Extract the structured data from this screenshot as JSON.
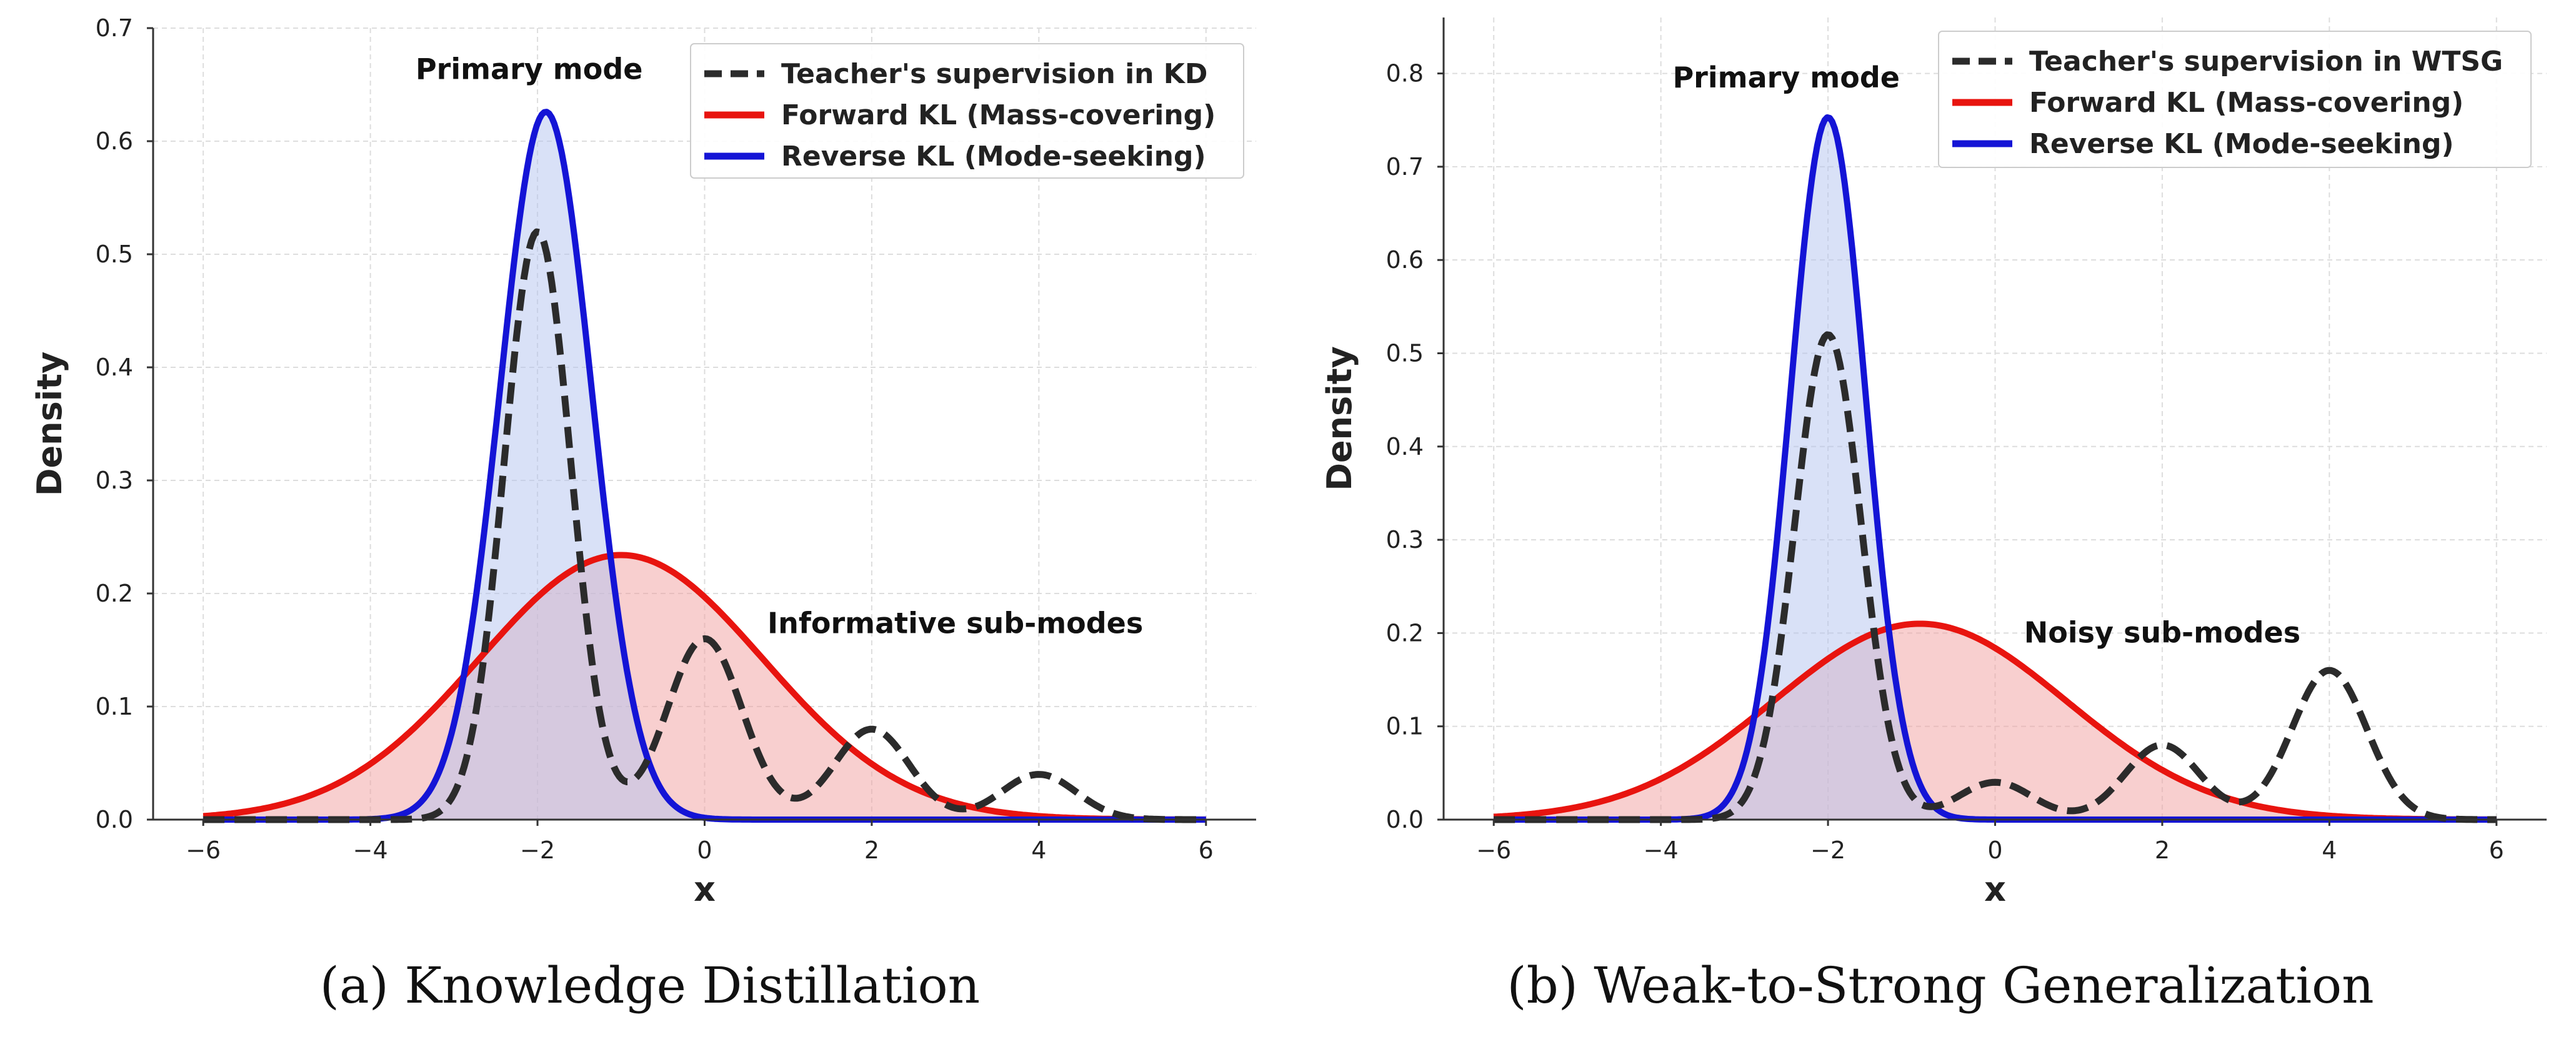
{
  "colors": {
    "teacher": "#2b2b2b",
    "forward": "#e8140f",
    "reverse": "#1414d6",
    "forward_fill": "#f2a0a0",
    "reverse_fill": "#b4c4f0",
    "grid": "#dddddd"
  },
  "chart_data": [
    {
      "type": "line",
      "caption": "(a)  Knowledge Distillation",
      "xlabel": "x",
      "ylabel": "Density",
      "xlim": [
        -6.6,
        6.6
      ],
      "ylim": [
        0,
        0.7
      ],
      "xticks": [
        -6,
        -4,
        -2,
        0,
        2,
        4,
        6
      ],
      "xtick_labels": [
        "−6",
        "−4",
        "−2",
        "0",
        "2",
        "4",
        "6"
      ],
      "yticks": [
        0.0,
        0.1,
        0.2,
        0.3,
        0.4,
        0.5,
        0.6,
        0.7
      ],
      "ytick_labels": [
        "0.0",
        "0.1",
        "0.2",
        "0.3",
        "0.4",
        "0.5",
        "0.6",
        "0.7"
      ],
      "grid": true,
      "legend": "top-right",
      "annotations": [
        {
          "text": "Primary mode",
          "x": -2.1,
          "y": 0.655
        },
        {
          "text": "Informative sub-modes",
          "x": 3.0,
          "y": 0.165
        }
      ],
      "series": [
        {
          "name": "Teacher's supervision in KD",
          "style": "dashed",
          "color_key": "teacher",
          "components": [
            {
              "weight": 0.52,
              "mean": -2.0,
              "sd": 0.4,
              "form": "peak"
            },
            {
              "weight": 0.16,
              "mean": 0.0,
              "sd": 0.45,
              "form": "peak"
            },
            {
              "weight": 0.08,
              "mean": 2.0,
              "sd": 0.45,
              "form": "peak"
            },
            {
              "weight": 0.04,
              "mean": 4.0,
              "sd": 0.45,
              "form": "peak"
            }
          ]
        },
        {
          "name": "Forward KL (Mass-covering)",
          "style": "solid",
          "color_key": "forward",
          "fill": true,
          "components": [
            {
              "weight": 0.234,
              "mean": -1.0,
              "sd": 1.7,
              "form": "peak"
            }
          ]
        },
        {
          "name": "Reverse KL (Mode-seeking)",
          "style": "solid",
          "color_key": "reverse",
          "fill": true,
          "components": [
            {
              "weight": 0.626,
              "mean": -1.9,
              "sd": 0.55,
              "form": "peak"
            }
          ]
        }
      ]
    },
    {
      "type": "line",
      "caption": "(b)  Weak-to-Strong Generalization",
      "xlabel": "x",
      "ylabel": "Density",
      "xlim": [
        -6.6,
        6.6
      ],
      "ylim": [
        0,
        0.86
      ],
      "xticks": [
        -6,
        -4,
        -2,
        0,
        2,
        4,
        6
      ],
      "xtick_labels": [
        "−6",
        "−4",
        "−2",
        "0",
        "2",
        "4",
        "6"
      ],
      "yticks": [
        0.0,
        0.1,
        0.2,
        0.3,
        0.4,
        0.5,
        0.6,
        0.7,
        0.8
      ],
      "ytick_labels": [
        "0.0",
        "0.1",
        "0.2",
        "0.3",
        "0.4",
        "0.5",
        "0.6",
        "0.7",
        "0.8"
      ],
      "grid": true,
      "legend": "top-right",
      "annotations": [
        {
          "text": "Primary mode",
          "x": -2.5,
          "y": 0.785
        },
        {
          "text": "Noisy sub-modes",
          "x": 2.0,
          "y": 0.19
        }
      ],
      "series": [
        {
          "name": "Teacher's supervision in WTSG",
          "style": "dashed",
          "color_key": "teacher",
          "components": [
            {
              "weight": 0.52,
              "mean": -2.0,
              "sd": 0.4,
              "form": "peak"
            },
            {
              "weight": 0.04,
              "mean": 0.0,
              "sd": 0.45,
              "form": "peak"
            },
            {
              "weight": 0.08,
              "mean": 2.0,
              "sd": 0.45,
              "form": "peak"
            },
            {
              "weight": 0.16,
              "mean": 4.0,
              "sd": 0.45,
              "form": "peak"
            }
          ]
        },
        {
          "name": "Forward KL (Mass-covering)",
          "style": "solid",
          "color_key": "forward",
          "fill": true,
          "components": [
            {
              "weight": 0.21,
              "mean": -0.9,
              "sd": 1.75,
              "form": "peak"
            }
          ]
        },
        {
          "name": "Reverse KL (Mode-seeking)",
          "style": "solid",
          "color_key": "reverse",
          "fill": true,
          "components": [
            {
              "weight": 0.753,
              "mean": -2.0,
              "sd": 0.45,
              "form": "peak"
            }
          ]
        }
      ]
    }
  ]
}
